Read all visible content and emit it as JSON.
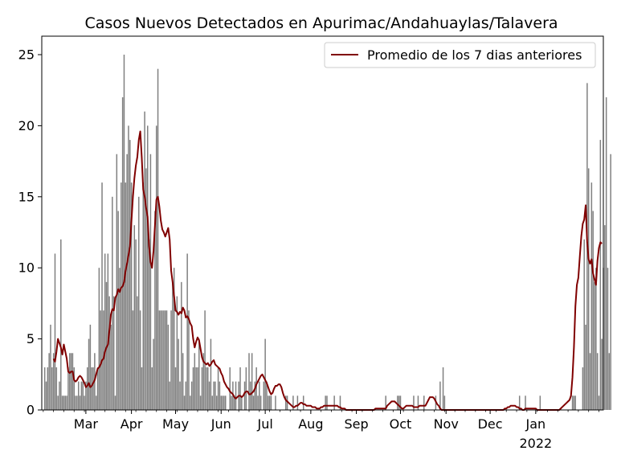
{
  "chart_data": {
    "type": "bar",
    "title": "Casos Nuevos Detectados en Apurimac/Andahuaylas/Talavera",
    "xlabel": "",
    "ylabel": "",
    "ylim": [
      0,
      26.3
    ],
    "y_ticks": [
      0,
      5,
      10,
      15,
      20,
      25
    ],
    "x_tick_labels": [
      "Mar",
      "Apr",
      "May",
      "Jun",
      "Jul",
      "Aug",
      "Sep",
      "Oct",
      "Nov",
      "Dec",
      "Jan"
    ],
    "x_secondary_label": "2022",
    "legend_position": "upper-right",
    "grid": false,
    "bar_color": "#808080",
    "line_color": "#800000",
    "series": [
      {
        "type": "bar",
        "start_date": "2021-02-01",
        "values": [
          3,
          2,
          3,
          4,
          6,
          3,
          4,
          11,
          3,
          1,
          2,
          12,
          1,
          1,
          1,
          1,
          3,
          4,
          4,
          4,
          3,
          1,
          1,
          2,
          1,
          2,
          2,
          1,
          2,
          3,
          5,
          6,
          3,
          3,
          4,
          1,
          3,
          10,
          7,
          16,
          7,
          11,
          9,
          11,
          8,
          6,
          15,
          8,
          1,
          18,
          14,
          10,
          16,
          22,
          25,
          16,
          18,
          20,
          19,
          16,
          7,
          13,
          12,
          8,
          15,
          7,
          3,
          16,
          21,
          17,
          20,
          12,
          18,
          3,
          5,
          14,
          20,
          24,
          7,
          7,
          7,
          7,
          7,
          7,
          6,
          2,
          7,
          9,
          10,
          3,
          8,
          5,
          2,
          9,
          4,
          1,
          2,
          11,
          7,
          1,
          2,
          3,
          4,
          3,
          3,
          5,
          1,
          3,
          4,
          7,
          3,
          3,
          2,
          5,
          1,
          2,
          2,
          1,
          3,
          2,
          1,
          1,
          1,
          1,
          0,
          0,
          3,
          1,
          2,
          1,
          2,
          0,
          2,
          3,
          1,
          0,
          2,
          3,
          0,
          4,
          2,
          4,
          1,
          2,
          3,
          1,
          2,
          1,
          0,
          2,
          5,
          2,
          1,
          1,
          1,
          0,
          0,
          1,
          0,
          0,
          0,
          0,
          0,
          0,
          1,
          1,
          0,
          0,
          0,
          1,
          0,
          0,
          1,
          0,
          0,
          0,
          1,
          0,
          0,
          0,
          0,
          0,
          0,
          0,
          0,
          0,
          0,
          0,
          0,
          0,
          0,
          1,
          1,
          0,
          0,
          0,
          0,
          1,
          0,
          0,
          0,
          1,
          0,
          0,
          0,
          0,
          0,
          0,
          0,
          0,
          0,
          0,
          0,
          0,
          0,
          0,
          0,
          0,
          0,
          0,
          0,
          0,
          0,
          0,
          0,
          0,
          0,
          0,
          0,
          0,
          0,
          0,
          1,
          0,
          0,
          0,
          0,
          0,
          0,
          0,
          1,
          1,
          1,
          0,
          0,
          0,
          0,
          0,
          0,
          0,
          0,
          1,
          0,
          0,
          1,
          0,
          0,
          0,
          1,
          0,
          0,
          0,
          0,
          0,
          0,
          0,
          1,
          0,
          0,
          2,
          0,
          3,
          1,
          0,
          0,
          0,
          0,
          0,
          0,
          0,
          0,
          0,
          0,
          0,
          0,
          0,
          0,
          0,
          0,
          0,
          0,
          0,
          0,
          0,
          0,
          0,
          0,
          0,
          0,
          0,
          0,
          0,
          0,
          0,
          0,
          0,
          0,
          0,
          0,
          0,
          0,
          0,
          0,
          0,
          0,
          0,
          0,
          0,
          0,
          0,
          0,
          0,
          0,
          1,
          0,
          0,
          0,
          1,
          0,
          0,
          0,
          0,
          0,
          0,
          0,
          0,
          0,
          1,
          0,
          0,
          0,
          0,
          0,
          0,
          0,
          0,
          0,
          0,
          0,
          0,
          0,
          0,
          0,
          0,
          0,
          0,
          0,
          0,
          0,
          1,
          1,
          1,
          0,
          0,
          0,
          0,
          3,
          12,
          6,
          23,
          17,
          4,
          16,
          14,
          9,
          10,
          4,
          1,
          19,
          5,
          10,
          13,
          22,
          10,
          4,
          18
        ]
      },
      {
        "type": "line",
        "name": "Promedio de los 7 dias anteriores",
        "start_date": "2021-02-07",
        "values": [
          3.6,
          3.4,
          4.1,
          5,
          4.7,
          4.4,
          3.9,
          4.6,
          4.1,
          3.6,
          2.7,
          2.6,
          2.7,
          2.7,
          2.1,
          2,
          2.1,
          2.3,
          2.4,
          2.3,
          2.1,
          1.9,
          1.6,
          1.7,
          1.9,
          1.6,
          1.7,
          1.9,
          2.1,
          2.5,
          2.9,
          3,
          3.2,
          3.5,
          3.6,
          4.1,
          4.4,
          4.6,
          5.6,
          6.7,
          7.1,
          7,
          7.9,
          8.1,
          8.5,
          8.3,
          8.6,
          8.7,
          9,
          9.8,
          10.3,
          10.9,
          11.5,
          13.3,
          15,
          16.3,
          17.2,
          17.8,
          19,
          19.6,
          17.8,
          15.5,
          15,
          14.2,
          13.6,
          11.5,
          10.4,
          10,
          11.2,
          13,
          14.8,
          15,
          14.3,
          13.3,
          12.7,
          12.5,
          12.2,
          12.5,
          12.8,
          12,
          9.8,
          9,
          8,
          7,
          6.9,
          6.7,
          6.9,
          6.8,
          7.2,
          7,
          6.5,
          6.6,
          6.4,
          6.1,
          5.9,
          5,
          4.4,
          4.8,
          5.1,
          4.9,
          4.3,
          3.7,
          3.4,
          3.3,
          3.2,
          3.3,
          3.1,
          3.2,
          3.4,
          3.5,
          3.2,
          3.1,
          3,
          2.9,
          2.6,
          2.4,
          2,
          1.8,
          1.6,
          1.5,
          1.3,
          1.2,
          1.1,
          0.9,
          0.8,
          0.9,
          1,
          1,
          0.9,
          1,
          1.2,
          1.3,
          1.3,
          1.1,
          1.1,
          1.2,
          1.3,
          1.5,
          1.8,
          2,
          2.2,
          2.4,
          2.5,
          2.3,
          2.1,
          1.9,
          1.6,
          1.3,
          1.1,
          1.2,
          1.5,
          1.7,
          1.7,
          1.8,
          1.8,
          1.6,
          1.2,
          0.9,
          0.7,
          0.6,
          0.5,
          0.4,
          0.3,
          0.2,
          0.2,
          0.3,
          0.3,
          0.4,
          0.5,
          0.5,
          0.4,
          0.4,
          0.3,
          0.3,
          0.3,
          0.3,
          0.2,
          0.2,
          0.2,
          0.1,
          0.1,
          0.1,
          0.2,
          0.2,
          0.3,
          0.3,
          0.3,
          0.3,
          0.3,
          0.3,
          0.3,
          0.3,
          0.3,
          0.3,
          0.2,
          0.2,
          0.1,
          0.1,
          0.1,
          0,
          0,
          0,
          0,
          0,
          0,
          0,
          0,
          0,
          0,
          0,
          0,
          0,
          0,
          0,
          0,
          0,
          0,
          0,
          0,
          0.1,
          0.1,
          0.1,
          0.1,
          0.1,
          0.1,
          0.1,
          0.1,
          0.3,
          0.4,
          0.5,
          0.6,
          0.6,
          0.6,
          0.5,
          0.4,
          0.3,
          0.2,
          0.1,
          0.1,
          0.2,
          0.3,
          0.3,
          0.3,
          0.3,
          0.3,
          0.2,
          0.2,
          0.2,
          0.2,
          0.3,
          0.3,
          0.3,
          0.3,
          0.3,
          0.5,
          0.7,
          0.9,
          0.9,
          0.9,
          0.8,
          0.6,
          0.4,
          0.3,
          0.1,
          0,
          0,
          0,
          0,
          0,
          0,
          0,
          0,
          0,
          0,
          0,
          0,
          0,
          0,
          0,
          0,
          0,
          0,
          0,
          0,
          0,
          0,
          0,
          0,
          0,
          0,
          0,
          0,
          0,
          0,
          0,
          0,
          0,
          0,
          0,
          0,
          0,
          0,
          0,
          0,
          0,
          0,
          0,
          0.1,
          0.1,
          0.2,
          0.2,
          0.3,
          0.3,
          0.3,
          0.3,
          0.2,
          0.2,
          0.1,
          0.1,
          0,
          0,
          0.1,
          0.1,
          0.1,
          0.1,
          0.1,
          0.1,
          0.1,
          0.1,
          0,
          0,
          0,
          0,
          0,
          0,
          0,
          0,
          0,
          0,
          0,
          0,
          0,
          0,
          0,
          0,
          0.1,
          0.2,
          0.3,
          0.4,
          0.5,
          0.6,
          0.7,
          1,
          2.3,
          4.4,
          7.3,
          8.8,
          9.3,
          10.8,
          12.2,
          13.1,
          13.4,
          14.4,
          11.8,
          10.6,
          10.3,
          10.6,
          9.6,
          9.2,
          8.8,
          10.5,
          11.4,
          11.8,
          11.7
        ]
      }
    ]
  }
}
